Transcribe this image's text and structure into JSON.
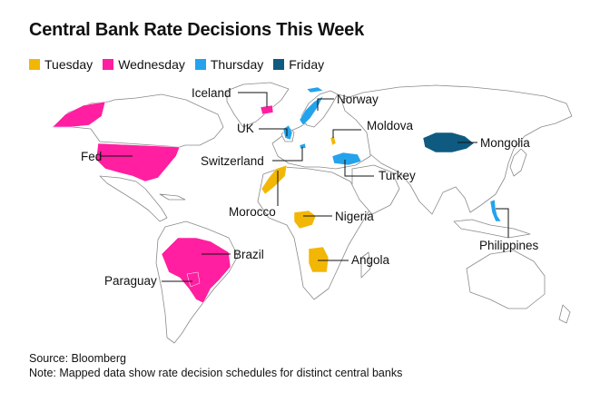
{
  "title": "Central Bank Rate Decisions This Week",
  "legend": [
    {
      "label": "Tuesday",
      "color": "#f2b705"
    },
    {
      "label": "Wednesday",
      "color": "#ff1fa0"
    },
    {
      "label": "Thursday",
      "color": "#24a3ec"
    },
    {
      "label": "Friday",
      "color": "#0f5a80"
    }
  ],
  "base_colors": {
    "land": "#ffffff",
    "border": "#8a8a8a",
    "leader": "#111111"
  },
  "countries": [
    {
      "label": "Iceland",
      "day": "Wednesday"
    },
    {
      "label": "Norway",
      "day": "Thursday"
    },
    {
      "label": "UK",
      "day": "Thursday"
    },
    {
      "label": "Moldova",
      "day": "Tuesday"
    },
    {
      "label": "Mongolia",
      "day": "Friday"
    },
    {
      "label": "Fed",
      "day": "Wednesday"
    },
    {
      "label": "Switzerland",
      "day": "Thursday"
    },
    {
      "label": "Turkey",
      "day": "Thursday"
    },
    {
      "label": "Morocco",
      "day": "Tuesday"
    },
    {
      "label": "Nigeria",
      "day": "Tuesday"
    },
    {
      "label": "Brazil",
      "day": "Wednesday"
    },
    {
      "label": "Angola",
      "day": "Tuesday"
    },
    {
      "label": "Paraguay",
      "day": "Wednesday"
    },
    {
      "label": "Philippines",
      "day": "Thursday"
    }
  ],
  "footer": {
    "source": "Source: Bloomberg",
    "note": "Note: Mapped data show rate decision schedules for distinct central banks"
  }
}
